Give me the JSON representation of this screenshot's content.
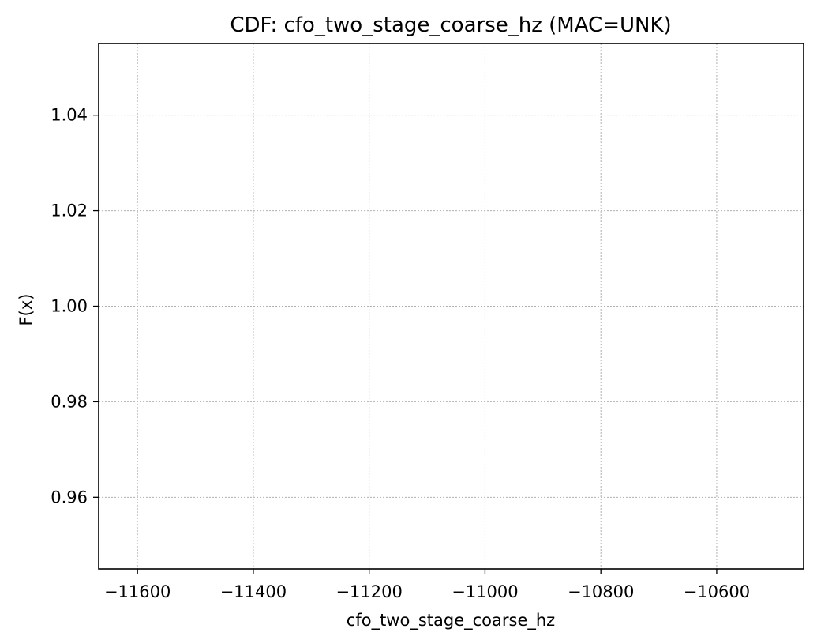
{
  "chart_data": {
    "type": "line",
    "title": "CDF: cfo_two_stage_coarse_hz (MAC=UNK)",
    "xlabel": "cfo_two_stage_coarse_hz",
    "ylabel": "F(x)",
    "xlim": [
      -11667,
      -10450
    ],
    "ylim": [
      0.945,
      1.055
    ],
    "xticks": [
      -11600,
      -11400,
      -11200,
      -11000,
      -10800,
      -10600
    ],
    "xtick_labels": [
      "−11600",
      "−11400",
      "−11200",
      "−11000",
      "−10800",
      "−10600"
    ],
    "yticks": [
      0.96,
      0.98,
      1.0,
      1.02,
      1.04
    ],
    "ytick_labels": [
      "0.96",
      "0.98",
      "1.00",
      "1.02",
      "1.04"
    ],
    "grid": true,
    "series": []
  }
}
